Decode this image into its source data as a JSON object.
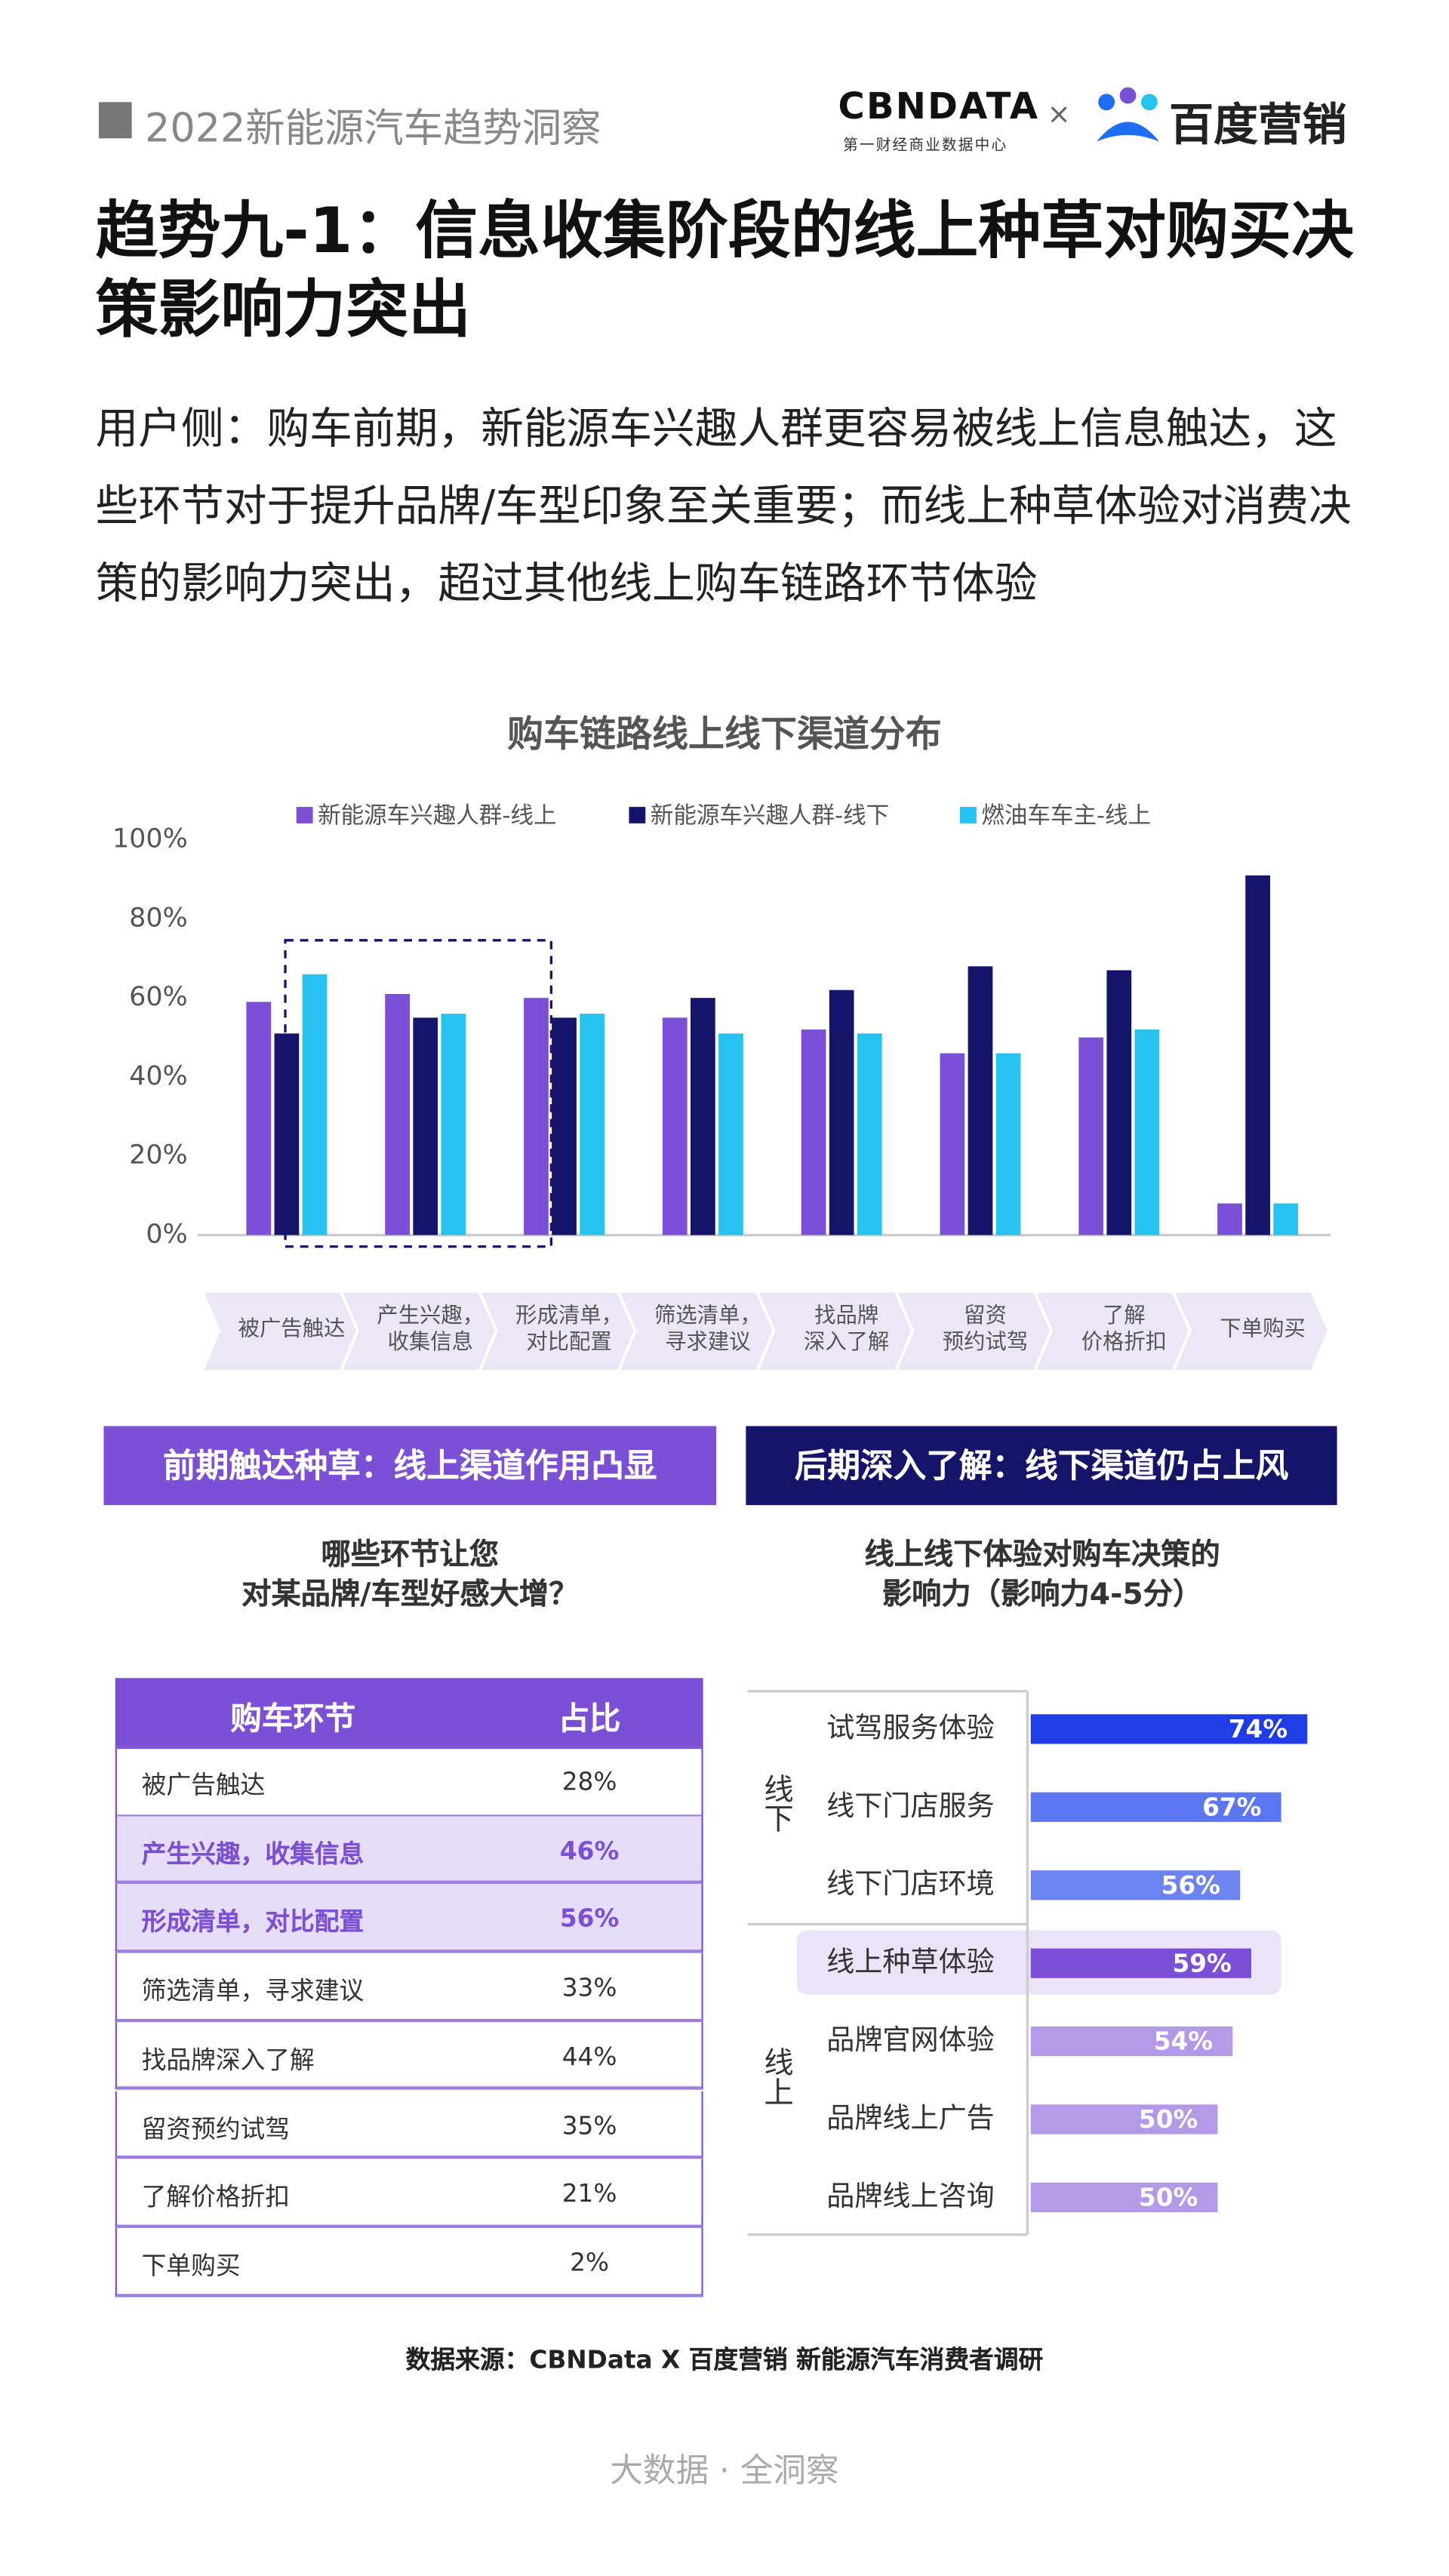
{
  "header": {
    "report": "2022新能源汽车趋势洞察",
    "logo_cbn": "CBNDATA",
    "logo_cbn_sub": "第一财经商业数据中心",
    "logo_x": "×",
    "logo_baidu": "百度营销"
  },
  "title": "趋势九-1：信息收集阶段的线上种草对购买决策影响力突出",
  "description": "用户侧：购车前期，新能源车兴趣人群更容易被线上信息触达，这些环节对于提升品牌/车型印象至关重要；而线上种草体验对消费决策的影响力突出，超过其他线上购车链路环节体验",
  "chart_data": [
    {
      "type": "bar",
      "title": "购车链路线上线下渠道分布",
      "categories": [
        "被广告触达",
        "产生兴趣，\n收集信息",
        "形成清单，\n对比配置",
        "筛选清单，\n寻求建议",
        "找品牌\n深入了解",
        "留资\n预约试驾",
        "了解\n价格折扣",
        "下单购买"
      ],
      "series": [
        {
          "name": "新能源车兴趣人群-线上",
          "color": "#7b4fd6",
          "values": [
            59,
            61,
            60,
            55,
            52,
            46,
            50,
            8
          ]
        },
        {
          "name": "新能源车兴趣人群-线下",
          "color": "#15146b",
          "values": [
            51,
            55,
            55,
            60,
            62,
            68,
            67,
            91
          ]
        },
        {
          "name": "燃油车车主-线上",
          "color": "#27c3f0",
          "values": [
            66,
            56,
            56,
            51,
            51,
            46,
            52,
            8
          ]
        }
      ],
      "ylim": [
        0,
        100
      ],
      "yticks": [
        {
          "value": 0,
          "label": "0%"
        },
        {
          "value": 20,
          "label": "20%"
        },
        {
          "value": 40,
          "label": "40%"
        },
        {
          "value": 60,
          "label": "60%"
        },
        {
          "value": 80,
          "label": "80%"
        },
        {
          "value": 100,
          "label": "100%"
        }
      ],
      "grid": false
    },
    {
      "type": "hbar",
      "title": "线上线下体验对购车决策的\n影响力（影响力4-5分）",
      "groups": [
        {
          "name": "线下",
          "categories": [
            "试驾服务体验",
            "线下门店服务",
            "线下门店环境"
          ],
          "values": [
            74,
            67,
            56
          ],
          "value_labels": [
            "74%",
            "67%",
            "56%"
          ],
          "colors": [
            "#1f3de6",
            "#5b78f2",
            "#6d84f0"
          ]
        },
        {
          "name": "线上",
          "categories": [
            "线上种草体验",
            "品牌官网体验",
            "品牌线上广告",
            "品牌线上咨询"
          ],
          "values": [
            59,
            54,
            50,
            50
          ],
          "value_labels": [
            "59%",
            "54%",
            "50%",
            "50%"
          ],
          "colors": [
            "#7b4fd6",
            "#b39ae8",
            "#b39ae8",
            "#b39ae8"
          ]
        }
      ]
    }
  ],
  "sections": [
    {
      "banner": "前期触达种草：线上渠道作用凸显"
    },
    {
      "banner": "后期深入了解：线下渠道仍占上风"
    }
  ],
  "table": {
    "title": "哪些环节让您\n对某品牌/车型好感大增？",
    "columns": [
      "购车环节",
      "占比"
    ],
    "rows": [
      [
        "被广告触达",
        "28%"
      ],
      [
        "产生兴趣，收集信息",
        "46%"
      ],
      [
        "形成清单，对比配置",
        "56%"
      ],
      [
        "筛选清单，寻求建议",
        "33%"
      ],
      [
        "找品牌深入了解",
        "44%"
      ],
      [
        "留资预约试驾",
        "35%"
      ],
      [
        "了解价格折扣",
        "21%"
      ],
      [
        "下单购买",
        "2%"
      ]
    ]
  },
  "source": "数据来源：CBNData X 百度营销 新能源汽车消费者调研",
  "footer": "大数据 · 全洞察"
}
